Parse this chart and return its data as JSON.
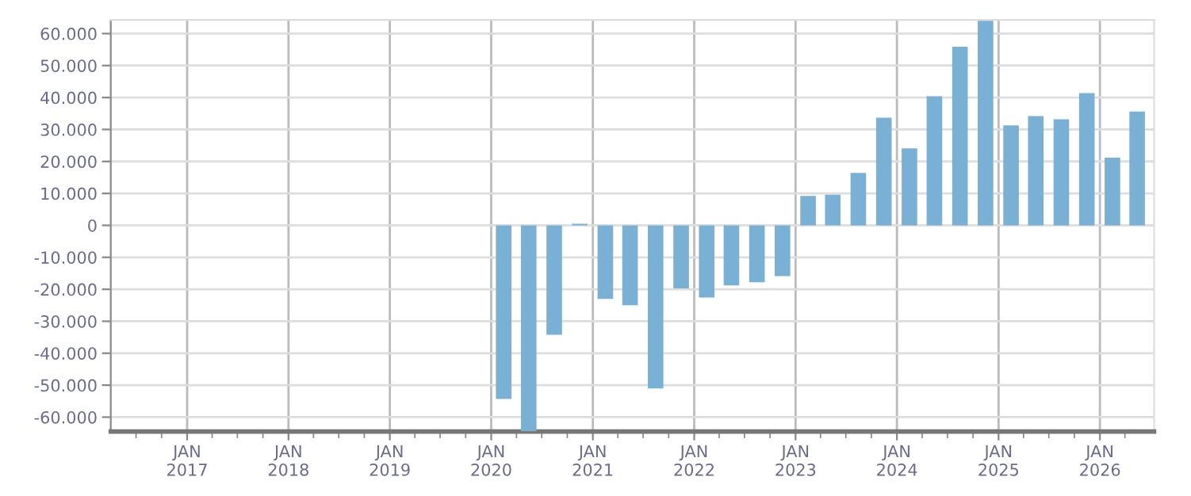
{
  "chart_data": {
    "type": "bar",
    "color": "#7ab0d3",
    "grid": true,
    "x": [
      "2020-02-15",
      "2020-05-15",
      "2020-08-15",
      "2020-11-15",
      "2021-02-15",
      "2021-05-15",
      "2021-08-15",
      "2021-11-15",
      "2022-02-15",
      "2022-05-15",
      "2022-08-15",
      "2022-11-15",
      "2023-02-15",
      "2023-05-15",
      "2023-08-15",
      "2023-11-15",
      "2024-02-15",
      "2024-05-15",
      "2024-08-15",
      "2024-11-15",
      "2025-02-15",
      "2025-05-15",
      "2025-08-15",
      "2025-11-15",
      "2026-02-15",
      "2026-05-15"
    ],
    "values": [
      -54300,
      -64500,
      -34200,
      500,
      -23000,
      -25000,
      -51000,
      -19700,
      -22600,
      -18800,
      -17800,
      -15900,
      9200,
      9600,
      16400,
      33700,
      24100,
      40400,
      55900,
      64000,
      31300,
      34200,
      33200,
      41400,
      21200,
      35600
    ],
    "xlim": [
      "2016-04-01",
      "2026-07-15"
    ],
    "xticks": [
      {
        "value": "2016-07-01",
        "label": null
      },
      {
        "value": "2016-10-01",
        "label": null
      },
      {
        "value": "2017-01-01",
        "label": "JAN\n2017"
      },
      {
        "value": "2017-04-01",
        "label": null
      },
      {
        "value": "2017-07-01",
        "label": null
      },
      {
        "value": "2017-10-01",
        "label": null
      },
      {
        "value": "2018-01-01",
        "label": "JAN\n2018"
      },
      {
        "value": "2018-04-01",
        "label": null
      },
      {
        "value": "2018-07-01",
        "label": null
      },
      {
        "value": "2018-10-01",
        "label": null
      },
      {
        "value": "2019-01-01",
        "label": "JAN\n2019"
      },
      {
        "value": "2019-04-01",
        "label": null
      },
      {
        "value": "2019-07-01",
        "label": null
      },
      {
        "value": "2019-10-01",
        "label": null
      },
      {
        "value": "2020-01-01",
        "label": "JAN\n2020"
      },
      {
        "value": "2020-04-01",
        "label": null
      },
      {
        "value": "2020-07-01",
        "label": null
      },
      {
        "value": "2020-10-01",
        "label": null
      },
      {
        "value": "2021-01-01",
        "label": "JAN\n2021"
      },
      {
        "value": "2021-04-01",
        "label": null
      },
      {
        "value": "2021-07-01",
        "label": null
      },
      {
        "value": "2021-10-01",
        "label": null
      },
      {
        "value": "2022-01-01",
        "label": "JAN\n2022"
      },
      {
        "value": "2022-04-01",
        "label": null
      },
      {
        "value": "2022-07-01",
        "label": null
      },
      {
        "value": "2022-10-01",
        "label": null
      },
      {
        "value": "2023-01-01",
        "label": "JAN\n2023"
      },
      {
        "value": "2023-04-01",
        "label": null
      },
      {
        "value": "2023-07-01",
        "label": null
      },
      {
        "value": "2023-10-01",
        "label": null
      },
      {
        "value": "2024-01-01",
        "label": "JAN\n2024"
      },
      {
        "value": "2024-04-01",
        "label": null
      },
      {
        "value": "2024-07-01",
        "label": null
      },
      {
        "value": "2024-10-01",
        "label": null
      },
      {
        "value": "2025-01-01",
        "label": "JAN\n2025"
      },
      {
        "value": "2025-04-01",
        "label": null
      },
      {
        "value": "2025-07-01",
        "label": null
      },
      {
        "value": "2025-10-01",
        "label": null
      },
      {
        "value": "2026-01-01",
        "label": "JAN\n2026"
      },
      {
        "value": "2026-04-01",
        "label": null
      }
    ],
    "ylim": [
      -64500,
      64300
    ],
    "yticks": [
      {
        "value": -60000,
        "label": "-60.000"
      },
      {
        "value": -50000,
        "label": "-50.000"
      },
      {
        "value": -40000,
        "label": "-40.000"
      },
      {
        "value": -30000,
        "label": "-30.000"
      },
      {
        "value": -20000,
        "label": "-20.000"
      },
      {
        "value": -10000,
        "label": "-10.000"
      },
      0,
      {
        "value": 10000,
        "label": "10.000"
      },
      {
        "value": 20000,
        "label": "20.000"
      },
      {
        "value": 30000,
        "label": "30.000"
      },
      {
        "value": 40000,
        "label": "40.000"
      },
      {
        "value": 50000,
        "label": "50.000"
      },
      {
        "value": 60000,
        "label": "60.000"
      }
    ]
  }
}
